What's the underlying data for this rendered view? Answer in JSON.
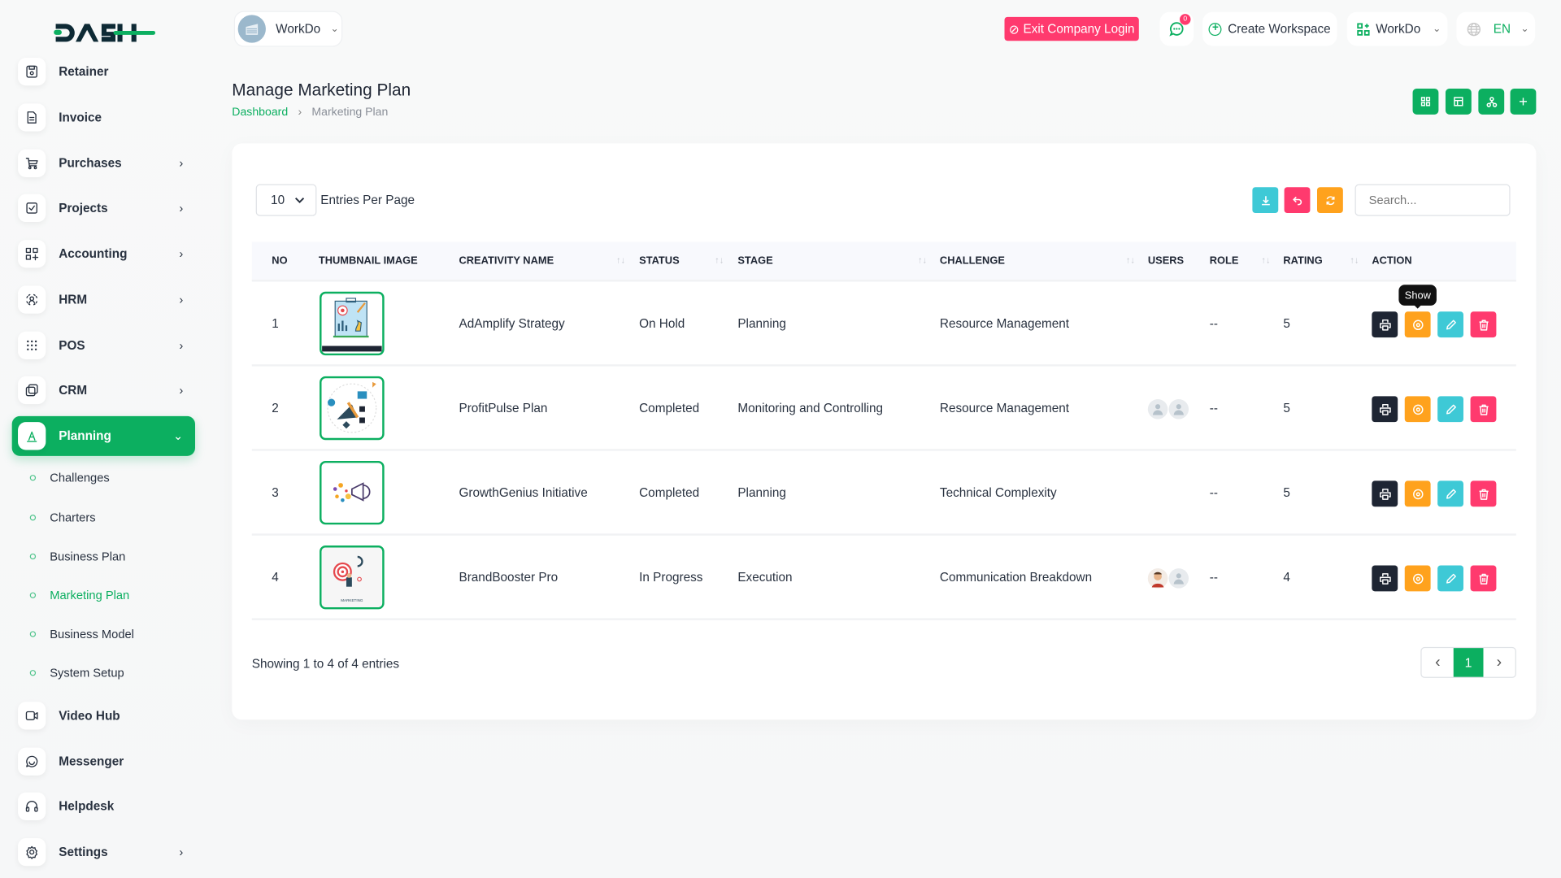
{
  "brand": {
    "logo_text": "DASH",
    "accent": "#0caf60"
  },
  "header": {
    "workspace_name": "WorkDo",
    "exit_label": "Exit Company Login",
    "chat_badge": "0",
    "create_workspace_label": "Create Workspace",
    "workspace_switch_label": "WorkDo",
    "language": "EN"
  },
  "sidebar": {
    "items": [
      {
        "label": "Retainer",
        "icon": "file-save-icon"
      },
      {
        "label": "Invoice",
        "icon": "invoice-icon"
      },
      {
        "label": "Purchases",
        "icon": "cart-icon",
        "chevron": true
      },
      {
        "label": "Projects",
        "icon": "checkbox-icon",
        "chevron": true
      },
      {
        "label": "Accounting",
        "icon": "grid-plus-icon",
        "chevron": true
      },
      {
        "label": "HRM",
        "icon": "hrm-icon",
        "chevron": true
      },
      {
        "label": "POS",
        "icon": "dots-grid-icon",
        "chevron": true
      },
      {
        "label": "CRM",
        "icon": "crm-icon",
        "chevron": true
      },
      {
        "label": "Planning",
        "icon": "planning-icon",
        "chevron": true,
        "active": true
      }
    ],
    "sub_items": [
      {
        "label": "Challenges"
      },
      {
        "label": "Charters"
      },
      {
        "label": "Business Plan"
      },
      {
        "label": "Marketing Plan",
        "active": true
      },
      {
        "label": "Business Model"
      },
      {
        "label": "System Setup"
      }
    ],
    "bottom_items": [
      {
        "label": "Video Hub",
        "icon": "video-icon"
      },
      {
        "label": "Messenger",
        "icon": "message-icon"
      },
      {
        "label": "Helpdesk",
        "icon": "headset-icon"
      },
      {
        "label": "Settings",
        "icon": "gear-icon",
        "chevron": true
      }
    ]
  },
  "page": {
    "title": "Manage Marketing Plan",
    "breadcrumb": [
      "Dashboard",
      "Marketing Plan"
    ]
  },
  "table_controls": {
    "per_page": "10",
    "per_page_label": "Entries Per Page",
    "search_placeholder": "Search..."
  },
  "table": {
    "headers": [
      "NO",
      "THUMBNAIL IMAGE",
      "CREATIVITY NAME",
      "STATUS",
      "STAGE",
      "CHALLENGE",
      "USERS",
      "ROLE",
      "RATING",
      "ACTION"
    ],
    "rows": [
      {
        "no": "1",
        "name": "AdAmplify Strategy",
        "status": "On Hold",
        "stage": "Planning",
        "challenge": "Resource Management",
        "users": [],
        "role": "--",
        "rating": "5"
      },
      {
        "no": "2",
        "name": "ProfitPulse Plan",
        "status": "Completed",
        "stage": "Monitoring and Controlling",
        "challenge": "Resource Management",
        "users": [
          "placeholder",
          "placeholder"
        ],
        "role": "--",
        "rating": "5"
      },
      {
        "no": "3",
        "name": "GrowthGenius Initiative",
        "status": "Completed",
        "stage": "Planning",
        "challenge": "Technical Complexity",
        "users": [],
        "role": "--",
        "rating": "5"
      },
      {
        "no": "4",
        "name": "BrandBooster Pro",
        "status": "In Progress",
        "stage": "Execution",
        "challenge": "Communication Breakdown",
        "users": [
          "photo",
          "placeholder"
        ],
        "role": "--",
        "rating": "4"
      }
    ],
    "tooltip": "Show",
    "thumb_caption": "MARKETING"
  },
  "footer": {
    "showing": "Showing 1 to 4 of 4 entries",
    "page": "1"
  },
  "colors": {
    "green": "#0caf60",
    "pink": "#ff3a6e",
    "orange": "#ffa21d",
    "cyan": "#3ec9d6",
    "dark": "#1e2533"
  }
}
